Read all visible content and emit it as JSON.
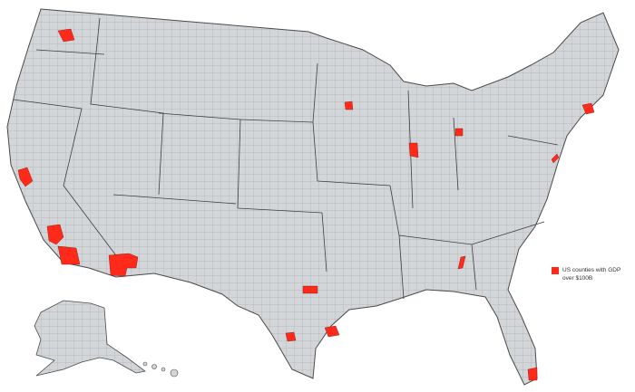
{
  "colors": {
    "land": "#d3d6d9",
    "border": "#4a4a4a",
    "highlight": "#ff2a1a",
    "background": "#ffffff"
  },
  "legend": {
    "label": "US counties with GDP over $100B",
    "color": "#ff2a1a"
  },
  "highlighted_counties": [
    {
      "name": "King County, WA"
    },
    {
      "name": "Hennepin County, MN"
    },
    {
      "name": "Cook County, IL"
    },
    {
      "name": "Oakland County, MI"
    },
    {
      "name": "San Francisco Bay Area counties, CA"
    },
    {
      "name": "Los Angeles County, CA"
    },
    {
      "name": "Orange & San Diego Counties, CA"
    },
    {
      "name": "Maricopa County, AZ"
    },
    {
      "name": "Dallas & Tarrant Counties, TX"
    },
    {
      "name": "Harris County, TX"
    },
    {
      "name": "Bexar County, TX"
    },
    {
      "name": "Fulton County, GA"
    },
    {
      "name": "Miami-Dade County, FL"
    },
    {
      "name": "New York / Philadelphia area counties"
    },
    {
      "name": "Middlesex & Suffolk Counties, MA"
    }
  ]
}
